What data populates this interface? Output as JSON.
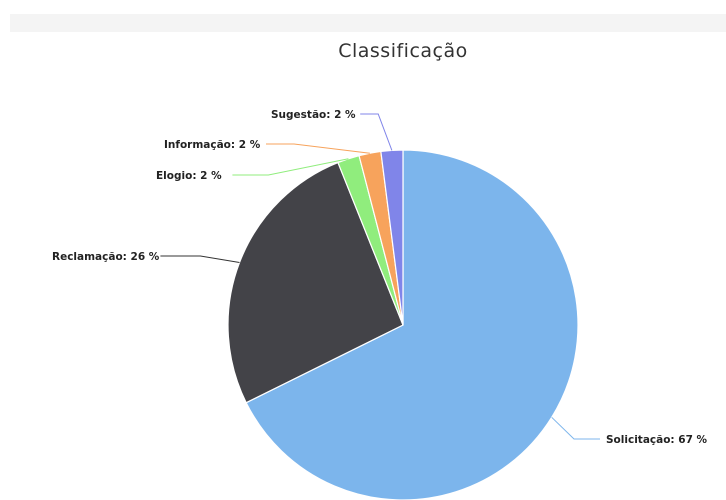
{
  "chart_data": {
    "type": "pie",
    "title": "Classificação",
    "slices": [
      {
        "name": "Solicitação",
        "value": 67,
        "label": "Solicitação: 67 %",
        "color": "#7cb5ec"
      },
      {
        "name": "Reclamação",
        "value": 26,
        "label": "Reclamação: 26 %",
        "color": "#434348"
      },
      {
        "name": "Elogio",
        "value": 2,
        "label": "Elogio: 2 %",
        "color": "#90ed7d"
      },
      {
        "name": "Informação",
        "value": 2,
        "label": "Informação: 2 %",
        "color": "#f7a35c"
      },
      {
        "name": "Sugestão",
        "value": 2,
        "label": "Sugestão: 2 %",
        "color": "#8085e9"
      }
    ]
  }
}
